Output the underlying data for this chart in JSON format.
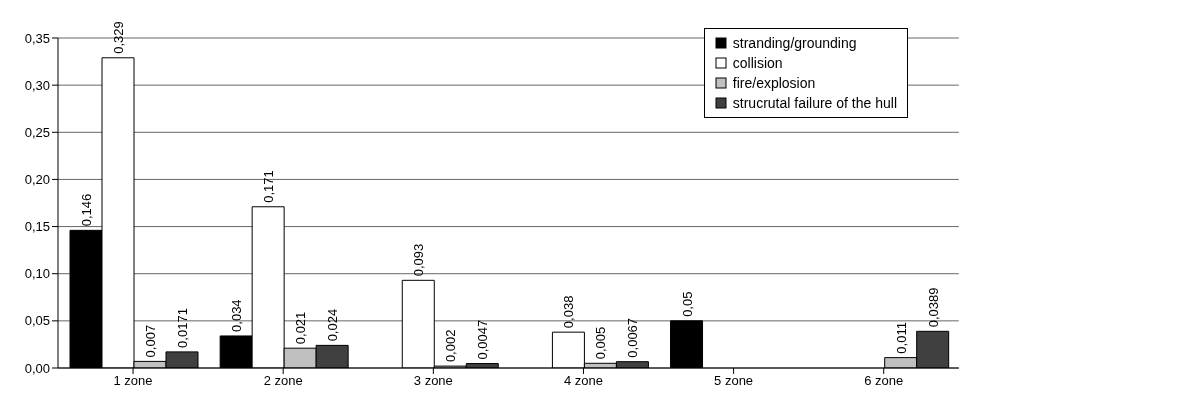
{
  "chart_data": {
    "type": "bar",
    "categories": [
      "1 zone",
      "2 zone",
      "3 zone",
      "4 zone",
      "5 zone",
      "6 zone"
    ],
    "series": [
      {
        "name": "stranding/grounding",
        "color": "#000000",
        "values": [
          0.146,
          0.034,
          null,
          null,
          0.05,
          null
        ],
        "value_labels": [
          "0,146",
          "0,034",
          null,
          null,
          "0,05",
          null
        ]
      },
      {
        "name": "collision",
        "color": "#ffffff",
        "values": [
          0.329,
          0.171,
          0.093,
          0.038,
          null,
          null
        ],
        "value_labels": [
          "0,329",
          "0,171",
          "0,093",
          "0,038",
          null,
          null
        ]
      },
      {
        "name": "fire/explosion",
        "color": "#c0c0c0",
        "values": [
          0.007,
          0.021,
          0.002,
          0.005,
          null,
          0.011
        ],
        "value_labels": [
          "0,007",
          "0,021",
          "0,002",
          "0,005",
          null,
          "0,011"
        ]
      },
      {
        "name": "strucrutal failure of the hull",
        "color": "#404040",
        "values": [
          0.0171,
          0.024,
          0.0047,
          0.0067,
          null,
          0.0389
        ],
        "value_labels": [
          "0,0171",
          "0,024",
          "0,0047",
          "0,0067",
          null,
          "0,0389"
        ]
      }
    ],
    "ylim": [
      0,
      0.35
    ],
    "yticks": [
      {
        "value": 0,
        "label": "0,00"
      },
      {
        "value": 0.05,
        "label": "0,05"
      },
      {
        "value": 0.1,
        "label": "0,10"
      },
      {
        "value": 0.15,
        "label": "0,15"
      },
      {
        "value": 0.2,
        "label": "0,20"
      },
      {
        "value": 0.25,
        "label": "0,25"
      },
      {
        "value": 0.3,
        "label": "0,30"
      },
      {
        "value": 0.35,
        "label": "0,35"
      }
    ],
    "grid": "y",
    "legend": "top right"
  }
}
